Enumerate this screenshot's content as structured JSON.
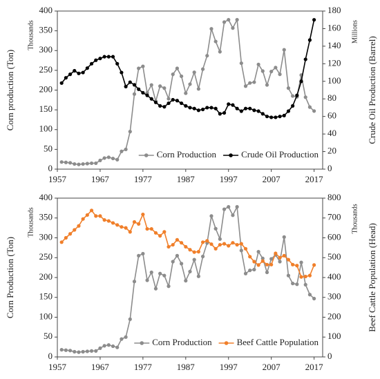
{
  "chart_data": [
    {
      "type": "line",
      "y_unit": "Thousands",
      "y2_unit": "Millions",
      "ylabel": "Corn production  (Ton)",
      "y2label": "Crude Oil Production (Barrel)",
      "xlim": [
        1957,
        2019
      ],
      "xticks": [
        1957,
        1967,
        1977,
        1987,
        1997,
        2007,
        2017
      ],
      "ylim": [
        0,
        400
      ],
      "yticks": [
        0,
        50,
        100,
        150,
        200,
        250,
        300,
        350,
        400
      ],
      "y2lim": [
        0,
        180
      ],
      "y2ticks": [
        0,
        20,
        40,
        60,
        80,
        100,
        120,
        140,
        160,
        180
      ],
      "legend": "lower right",
      "x": [
        1958,
        1959,
        1960,
        1961,
        1962,
        1963,
        1964,
        1965,
        1966,
        1967,
        1968,
        1969,
        1970,
        1971,
        1972,
        1973,
        1974,
        1975,
        1976,
        1977,
        1978,
        1979,
        1980,
        1981,
        1982,
        1983,
        1984,
        1985,
        1986,
        1987,
        1988,
        1989,
        1990,
        1991,
        1992,
        1993,
        1994,
        1995,
        1996,
        1997,
        1998,
        1999,
        2000,
        2001,
        2002,
        2003,
        2004,
        2005,
        2006,
        2007,
        2008,
        2009,
        2010,
        2011,
        2012,
        2013,
        2014,
        2015,
        2016,
        2017
      ],
      "series": [
        {
          "name": "Corn Production",
          "color": "#8c8c8c",
          "axis": "y",
          "values": [
            18,
            17,
            16,
            13,
            12,
            13,
            14,
            15,
            15,
            22,
            28,
            30,
            27,
            24,
            45,
            50,
            95,
            190,
            255,
            260,
            193,
            213,
            172,
            210,
            205,
            178,
            240,
            255,
            235,
            192,
            215,
            245,
            203,
            253,
            287,
            355,
            323,
            297,
            372,
            378,
            357,
            378,
            268,
            210,
            218,
            220,
            265,
            248,
            213,
            247,
            257,
            240,
            302,
            205,
            185,
            183,
            238,
            182,
            157,
            147
          ]
        },
        {
          "name": "Crude Oil Production",
          "color": "#000000",
          "axis": "y2",
          "values": [
            98,
            104,
            108,
            112,
            109,
            110,
            115,
            120,
            124,
            126,
            128,
            128,
            128,
            120,
            110,
            94,
            99,
            96,
            91,
            87,
            84,
            80,
            76,
            72,
            71,
            75,
            79,
            78,
            75,
            72,
            70,
            69,
            67,
            68,
            70,
            70,
            69,
            63,
            64,
            74,
            73,
            69,
            66,
            69,
            69,
            67,
            66,
            63,
            60,
            59,
            59,
            60,
            61,
            66,
            72,
            84,
            100,
            125,
            147,
            170
          ]
        }
      ]
    },
    {
      "type": "line",
      "y_unit": "Thousands",
      "y2_unit": "Thousands",
      "ylabel": "Corn Production (Ton)",
      "y2label": "Beef Cattle Population (Head)",
      "xlim": [
        1957,
        2019
      ],
      "xticks": [
        1957,
        1967,
        1977,
        1987,
        1997,
        2007,
        2017
      ],
      "ylim": [
        0,
        400
      ],
      "yticks": [
        0,
        50,
        100,
        150,
        200,
        250,
        300,
        350,
        400
      ],
      "y2lim": [
        0,
        800
      ],
      "y2ticks": [
        0,
        100,
        200,
        300,
        400,
        500,
        600,
        700,
        800
      ],
      "legend": "lower right",
      "x": [
        1958,
        1959,
        1960,
        1961,
        1962,
        1963,
        1964,
        1965,
        1966,
        1967,
        1968,
        1969,
        1970,
        1971,
        1972,
        1973,
        1974,
        1975,
        1976,
        1977,
        1978,
        1979,
        1980,
        1981,
        1982,
        1983,
        1984,
        1985,
        1986,
        1987,
        1988,
        1989,
        1990,
        1991,
        1992,
        1993,
        1994,
        1995,
        1996,
        1997,
        1998,
        1999,
        2000,
        2001,
        2002,
        2003,
        2004,
        2005,
        2006,
        2007,
        2008,
        2009,
        2010,
        2011,
        2012,
        2013,
        2014,
        2015,
        2016,
        2017
      ],
      "series": [
        {
          "name": "Corn Production",
          "color": "#8c8c8c",
          "axis": "y",
          "values": [
            18,
            17,
            16,
            13,
            12,
            13,
            14,
            15,
            15,
            22,
            28,
            30,
            27,
            24,
            45,
            50,
            95,
            190,
            255,
            260,
            193,
            213,
            172,
            210,
            205,
            178,
            240,
            255,
            235,
            192,
            215,
            245,
            203,
            253,
            287,
            355,
            323,
            297,
            372,
            378,
            357,
            378,
            268,
            210,
            218,
            220,
            265,
            248,
            213,
            247,
            257,
            240,
            302,
            205,
            185,
            183,
            238,
            182,
            157,
            147
          ]
        },
        {
          "name": "Beef Cattle Population",
          "color": "#f07f2a",
          "axis": "y2",
          "values": [
            578,
            600,
            620,
            640,
            660,
            695,
            715,
            738,
            710,
            710,
            690,
            685,
            675,
            665,
            655,
            650,
            630,
            680,
            670,
            718,
            645,
            645,
            625,
            610,
            630,
            555,
            565,
            590,
            575,
            555,
            540,
            528,
            530,
            578,
            585,
            568,
            545,
            565,
            570,
            560,
            575,
            565,
            570,
            545,
            505,
            480,
            463,
            483,
            465,
            465,
            522,
            500,
            510,
            490,
            465,
            460,
            403,
            405,
            410,
            463
          ]
        }
      ]
    }
  ]
}
